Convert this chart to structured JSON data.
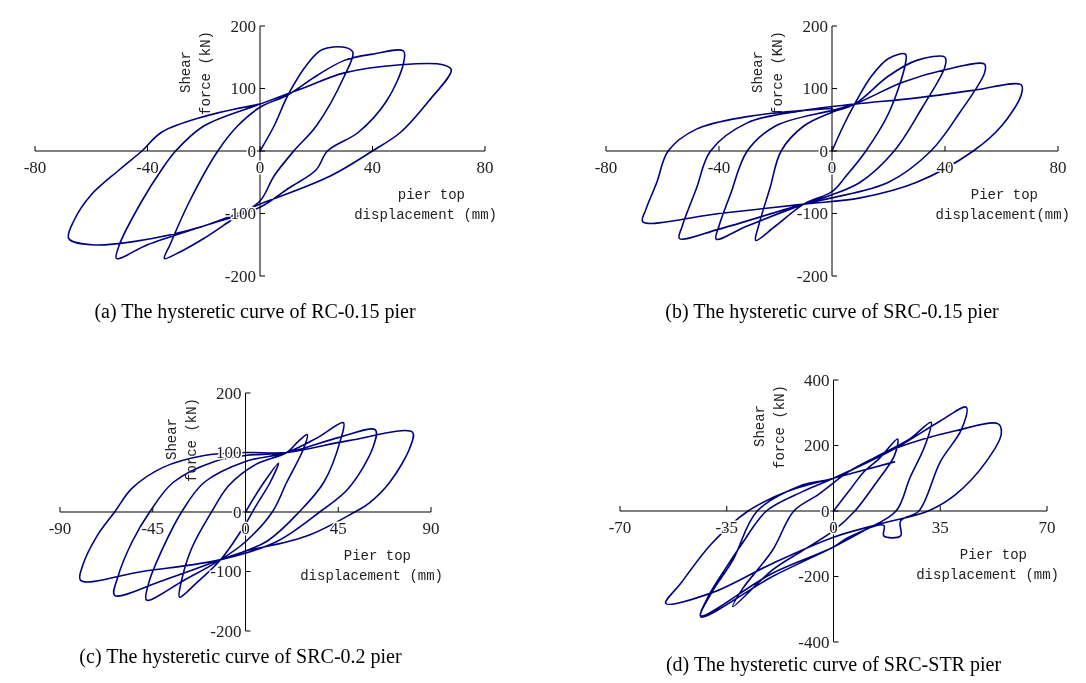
{
  "chart_data": [
    {
      "type": "line",
      "title": "(a) The hysteretic curve of RC-0.15 pier",
      "xlabel": "pier top displacement (mm)",
      "ylabel": "Shear force (kN)",
      "xlim": [
        -80,
        80
      ],
      "xticks": [
        -80,
        -40,
        0,
        40,
        80
      ],
      "ylim": [
        -200,
        200
      ],
      "yticks": [
        -200,
        -100,
        0,
        100,
        200
      ],
      "x": [
        0,
        5,
        10,
        17,
        22,
        30,
        33,
        30,
        20,
        12,
        5,
        0,
        -10,
        -20,
        -30,
        -34,
        -32,
        -25,
        -15,
        -8,
        0,
        10,
        20,
        30,
        40,
        51,
        51,
        45,
        35,
        24,
        20,
        10,
        0,
        -20,
        -40,
        -51,
        -50,
        -42,
        -35,
        -30,
        -20,
        0,
        15,
        30,
        50,
        65,
        68,
        60,
        50,
        40,
        25,
        0,
        -20,
        -45,
        -60,
        -68,
        -66,
        -60,
        -50,
        -42,
        -35,
        -20,
        0
      ],
      "series": [
        {
          "color": "#000080",
          "values": [
            0,
            40,
            90,
            140,
            162,
            166,
            158,
            120,
            40,
            0,
            -40,
            -80,
            -110,
            -140,
            -165,
            -172,
            -150,
            -80,
            0,
            40,
            70,
            90,
            120,
            145,
            155,
            160,
            140,
            80,
            30,
            0,
            -30,
            -60,
            -90,
            -120,
            -150,
            -172,
            -150,
            -80,
            -30,
            0,
            40,
            75,
            100,
            125,
            138,
            138,
            130,
            80,
            30,
            0,
            -40,
            -85,
            -120,
            -145,
            -150,
            -140,
            -110,
            -70,
            -30,
            0,
            30,
            55,
            75
          ]
        }
      ]
    },
    {
      "type": "line",
      "title": "(b) The hysteretic curve of SRC-0.15 pier",
      "xlabel": "Pier top displacement(mm)",
      "ylabel": "Shear force (KN)",
      "xlim": [
        -80,
        80
      ],
      "xticks": [
        -80,
        -40,
        0,
        40,
        80
      ],
      "ylim": [
        -200,
        200
      ],
      "yticks": [
        -200,
        -100,
        0,
        100,
        200
      ],
      "x": [
        0,
        4,
        8,
        14,
        20,
        26,
        26,
        20,
        12,
        5,
        0,
        -10,
        -20,
        -27,
        -26,
        -22,
        -18,
        -10,
        0,
        8,
        20,
        30,
        40,
        40,
        32,
        22,
        10,
        0,
        -10,
        -30,
        -41,
        -40,
        -36,
        -30,
        -20,
        0,
        8,
        25,
        40,
        54,
        54,
        45,
        35,
        20,
        0,
        -10,
        -40,
        -54,
        -53,
        -48,
        -43,
        -30,
        -10,
        8,
        30,
        50,
        67,
        67,
        60,
        50,
        30,
        10,
        -10,
        -40,
        -67,
        -66,
        -62,
        -58,
        -48,
        -30,
        -10,
        0
      ],
      "series": [
        {
          "color": "#000080",
          "values": [
            0,
            40,
            75,
            120,
            148,
            155,
            140,
            60,
            0,
            -40,
            -65,
            -85,
            -120,
            -143,
            -120,
            -60,
            0,
            40,
            62,
            75,
            120,
            145,
            150,
            135,
            70,
            0,
            -50,
            -70,
            -85,
            -120,
            -141,
            -120,
            -70,
            0,
            40,
            65,
            75,
            110,
            130,
            139,
            125,
            60,
            0,
            -50,
            -75,
            -85,
            -125,
            -140,
            -120,
            -60,
            0,
            45,
            65,
            75,
            85,
            97,
            106,
            90,
            40,
            0,
            -50,
            -75,
            -85,
            -100,
            -113,
            -95,
            -50,
            0,
            35,
            55,
            65,
            68
          ]
        }
      ]
    },
    {
      "type": "line",
      "title": "(c) The hysteretic curve of SRC-0.2 pier",
      "xlabel": "Pier top displacement (mm)",
      "ylabel": "Shear force (kN)",
      "xlim": [
        -90,
        90
      ],
      "xticks": [
        -90,
        -45,
        0,
        45,
        90
      ],
      "ylim": [
        -200,
        200
      ],
      "yticks": [
        -200,
        -100,
        0,
        100,
        200
      ],
      "x": [
        0,
        8,
        16,
        12,
        5,
        0,
        -12,
        -24,
        -32,
        -31,
        -26,
        -16.5,
        -8,
        5,
        20,
        26,
        30,
        28,
        20,
        13,
        0,
        -12,
        -30,
        -48,
        -47,
        -40,
        -31,
        -20,
        0,
        20,
        35,
        47.5,
        46,
        38,
        26,
        10,
        -12,
        -40,
        -63.5,
        -62,
        -55,
        -46.5,
        -35,
        -15,
        0,
        20,
        45,
        63,
        62,
        50,
        36,
        15,
        -12,
        -50,
        -80,
        -79,
        -72,
        -63.5,
        -55,
        -40,
        -20,
        0,
        20,
        50,
        81,
        80,
        70,
        60,
        53,
        30,
        0
      ],
      "series": [
        {
          "color": "#000080",
          "values": [
            0,
            45,
            82,
            50,
            10,
            -20,
            -80,
            -120,
            -143,
            -115,
            -60,
            0,
            45,
            80,
            100,
            120,
            130,
            105,
            50,
            0,
            -50,
            -80,
            -115,
            -148,
            -120,
            -60,
            0,
            50,
            85,
            100,
            125,
            150,
            120,
            50,
            0,
            -50,
            -80,
            -115,
            -140,
            -110,
            -50,
            0,
            50,
            85,
            95,
            100,
            125,
            138,
            110,
            40,
            0,
            -50,
            -80,
            -100,
            -115,
            -90,
            -40,
            0,
            40,
            75,
            95,
            100,
            100,
            120,
            134,
            110,
            50,
            15,
            0,
            -40,
            -65
          ]
        }
      ]
    },
    {
      "type": "line",
      "title": "(d) The hysteretic curve of SRC-STR pier",
      "xlabel": "Pier top displacement (mm)",
      "ylabel": "Shear force (kN)",
      "xlim": [
        -70,
        70
      ],
      "xticks": [
        -70,
        -35,
        0,
        35,
        70
      ],
      "ylim": [
        -400,
        400
      ],
      "yticks": [
        -400,
        -200,
        0,
        200,
        400
      ],
      "x": [
        0,
        5,
        10,
        15,
        21,
        20,
        13.5,
        7,
        0,
        -10,
        -20,
        -33,
        -30,
        -20,
        -13,
        -5,
        5,
        15,
        25,
        32,
        30,
        25,
        20.5,
        10,
        0,
        -20,
        -43.5,
        -41,
        -35,
        -30,
        -22,
        -10,
        0,
        20,
        35,
        43.5,
        42,
        35,
        28,
        22,
        22,
        16.5,
        16.5,
        5,
        0,
        -20,
        -43.5,
        -40,
        -33,
        -25,
        -10,
        0,
        20,
        40,
        54,
        55,
        50,
        40,
        31,
        15,
        0,
        -20,
        -40,
        -55,
        -50,
        -40,
        -28,
        -15,
        0,
        20
      ],
      "series": [
        {
          "color": "#000080",
          "values": [
            0,
            60,
            120,
            160,
            220,
            170,
            80,
            0,
            -60,
            -120,
            -180,
            -292,
            -240,
            -120,
            0,
            50,
            120,
            170,
            220,
            271,
            200,
            100,
            0,
            -60,
            -110,
            -200,
            -323,
            -260,
            -170,
            -100,
            0,
            60,
            100,
            190,
            275,
            317,
            250,
            150,
            0,
            -30,
            -76,
            -76,
            -44,
            -80,
            -110,
            -190,
            -320,
            -250,
            -150,
            0,
            80,
            100,
            190,
            245,
            266,
            235,
            150,
            50,
            0,
            -40,
            -80,
            -160,
            -250,
            -282,
            -220,
            -100,
            0,
            60,
            100,
            150
          ]
        }
      ]
    }
  ]
}
